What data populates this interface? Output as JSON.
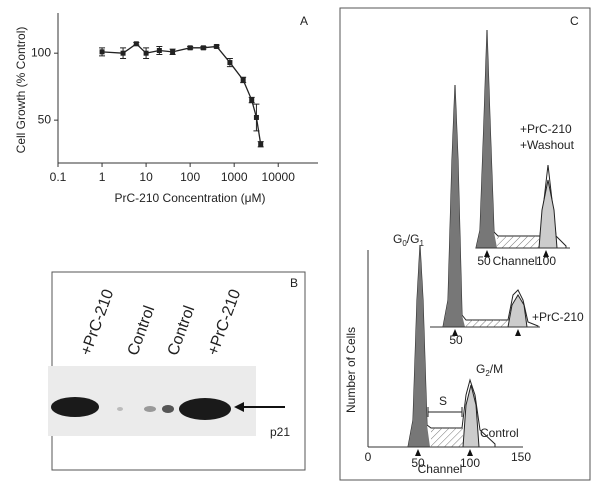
{
  "chart_data": {
    "type": "line",
    "panel_label": "A",
    "y_label": "Cell Growth (% Control)",
    "x_label": "PrC-210 Concentration (μM)",
    "x_log": true,
    "x": [
      1,
      3,
      6,
      10,
      20,
      40,
      100,
      200,
      400,
      800,
      1600,
      2500,
      3200,
      4000
    ],
    "values": [
      101,
      100,
      107,
      100,
      102,
      101,
      104,
      104,
      105,
      93,
      80,
      65,
      52,
      32
    ],
    "errors": [
      3,
      4,
      1,
      4,
      3,
      2,
      1,
      1,
      1,
      3,
      2,
      2,
      10,
      2
    ],
    "color": "#222",
    "xlim": [
      0.1,
      80000
    ],
    "xticks": [
      0.1,
      1,
      10,
      100,
      1000,
      10000
    ],
    "ylim": [
      18,
      130
    ],
    "yticks": [
      50,
      100
    ]
  },
  "panel_b": {
    "panel_label": "B",
    "lanes": [
      "+PrC-210",
      "Control",
      "Control",
      "+PrC-210"
    ],
    "band_label": "p21"
  },
  "panel_c": {
    "panel_label": "C",
    "washout_label": [
      "+PrC-210",
      "+Washout"
    ],
    "treated_label": "+PrC-210",
    "control_label": "Control",
    "g0g1": [
      "G",
      "0",
      "/G",
      "1"
    ],
    "g2m": [
      "G",
      "2",
      "/M"
    ],
    "s_label": "S",
    "y_label": "Number of Cells",
    "x_label": "Channel",
    "ticks": [
      0,
      50,
      100,
      150
    ],
    "small_ticks": [
      50,
      100
    ]
  }
}
